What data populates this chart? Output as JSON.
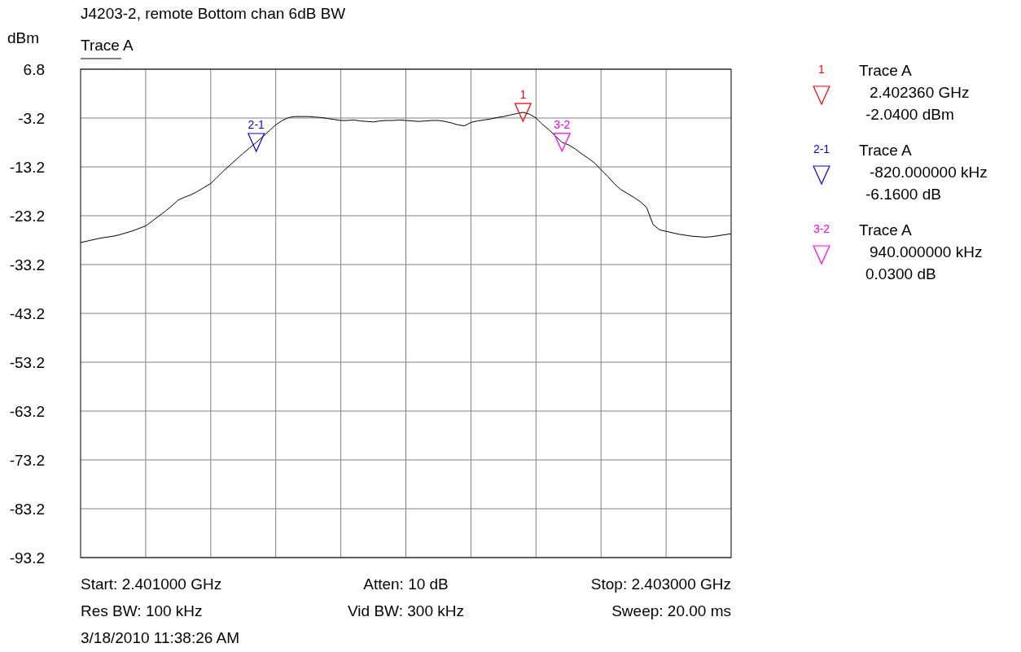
{
  "chart_data": {
    "type": "line",
    "title": "J4203-2, remote Bottom chan 6dB BW",
    "ylabel": "dBm",
    "categories": [
      null,
      null,
      null,
      null,
      null,
      null,
      null,
      null,
      null,
      null,
      null,
      null,
      null,
      null,
      null,
      null,
      null,
      null,
      null,
      null,
      null,
      null,
      null,
      null,
      null,
      null,
      null,
      null,
      null,
      null,
      null,
      null,
      null,
      null,
      null,
      null,
      null,
      null,
      null,
      null,
      null,
      null,
      null,
      null,
      null,
      null,
      null,
      null,
      null,
      null,
      null,
      null,
      null,
      null,
      null,
      null,
      null,
      null,
      null,
      null,
      null,
      null,
      null,
      null,
      null,
      null,
      null,
      null,
      null,
      null,
      null,
      null,
      null,
      null,
      null,
      null,
      null,
      null,
      null,
      null,
      null,
      null,
      null,
      null,
      null,
      null,
      null,
      null,
      null,
      null,
      null,
      null,
      null,
      null,
      null,
      null,
      null,
      null,
      null,
      null,
      null
    ],
    "ylim": [
      -93.2,
      6.8
    ],
    "yticks": [
      6.8,
      -3.2,
      -13.2,
      -23.2,
      -33.2,
      -43.2,
      -53.2,
      -63.2,
      -73.2,
      -83.2,
      -93.2
    ],
    "tick_labels": "y",
    "grid": true,
    "series": [
      {
        "name": "Trace A",
        "color": "#000000",
        "values": [
          -28.7,
          -28.4,
          -28.1,
          -27.8,
          -27.6,
          -27.4,
          -27.1,
          -26.7,
          -26.3,
          -25.8,
          -25.3,
          -24.3,
          -23.3,
          -22.3,
          -21.2,
          -20.0,
          -19.4,
          -18.9,
          -18.2,
          -17.4,
          -16.6,
          -15.3,
          -14.0,
          -12.8,
          -11.6,
          -10.4,
          -9.3,
          -8.2,
          -7.0,
          -5.8,
          -4.6,
          -3.7,
          -3.1,
          -2.9,
          -2.9,
          -2.9,
          -3.0,
          -3.1,
          -3.3,
          -3.5,
          -3.7,
          -3.7,
          -3.6,
          -3.8,
          -3.9,
          -4.0,
          -3.8,
          -3.7,
          -3.7,
          -3.6,
          -3.7,
          -3.8,
          -3.9,
          -3.8,
          -3.7,
          -3.7,
          -3.9,
          -4.2,
          -4.6,
          -4.8,
          -4.1,
          -3.8,
          -3.6,
          -3.4,
          -3.1,
          -2.9,
          -2.6,
          -2.3,
          -2.04,
          -2.4,
          -3.2,
          -4.5,
          -5.6,
          -6.9,
          -8.17,
          -8.7,
          -9.5,
          -10.5,
          -11.4,
          -12.4,
          -13.8,
          -15.1,
          -16.6,
          -17.8,
          -18.6,
          -19.4,
          -20.3,
          -21.5,
          -25.0,
          -26.1,
          -26.4,
          -26.7,
          -27.0,
          -27.2,
          -27.4,
          -27.5,
          -27.6,
          -27.5,
          -27.3,
          -27.1,
          -26.9
        ]
      },
      {
        "name": "1",
        "type": "scatter",
        "color": "#ff0000",
        "marker": "triangle",
        "values": [
          null,
          null,
          null,
          null,
          null,
          null,
          null,
          null,
          null,
          null,
          null,
          null,
          null,
          null,
          null,
          null,
          null,
          null,
          null,
          null,
          null,
          null,
          null,
          null,
          null,
          null,
          null,
          null,
          null,
          null,
          null,
          null,
          null,
          null,
          null,
          null,
          null,
          null,
          null,
          null,
          null,
          null,
          null,
          null,
          null,
          null,
          null,
          null,
          null,
          null,
          null,
          null,
          null,
          null,
          null,
          null,
          null,
          null,
          null,
          null,
          null,
          null,
          null,
          null,
          null,
          null,
          null,
          null,
          -2.04,
          null,
          null,
          null,
          null,
          null,
          null,
          null,
          null,
          null,
          null,
          null,
          null,
          null,
          null,
          null,
          null,
          null,
          null,
          null,
          null,
          null,
          null,
          null,
          null,
          null,
          null,
          null,
          null,
          null,
          null,
          null,
          null
        ]
      },
      {
        "name": "2-1",
        "type": "scatter",
        "color": "#0000ff",
        "marker": "triangle",
        "values": [
          null,
          null,
          null,
          null,
          null,
          null,
          null,
          null,
          null,
          null,
          null,
          null,
          null,
          null,
          null,
          null,
          null,
          null,
          null,
          null,
          null,
          null,
          null,
          null,
          null,
          null,
          null,
          -8.2,
          null,
          null,
          null,
          null,
          null,
          null,
          null,
          null,
          null,
          null,
          null,
          null,
          null,
          null,
          null,
          null,
          null,
          null,
          null,
          null,
          null,
          null,
          null,
          null,
          null,
          null,
          null,
          null,
          null,
          null,
          null,
          null,
          null,
          null,
          null,
          null,
          null,
          null,
          null,
          null,
          null,
          null,
          null,
          null,
          null,
          null,
          null,
          null,
          null,
          null,
          null,
          null,
          null,
          null,
          null,
          null,
          null,
          null,
          null,
          null,
          null,
          null,
          null,
          null,
          null,
          null,
          null,
          null,
          null,
          null,
          null,
          null,
          null
        ]
      },
      {
        "name": "3-2",
        "type": "scatter",
        "color": "#ff00ff",
        "marker": "triangle",
        "values": [
          null,
          null,
          null,
          null,
          null,
          null,
          null,
          null,
          null,
          null,
          null,
          null,
          null,
          null,
          null,
          null,
          null,
          null,
          null,
          null,
          null,
          null,
          null,
          null,
          null,
          null,
          null,
          null,
          null,
          null,
          null,
          null,
          null,
          null,
          null,
          null,
          null,
          null,
          null,
          null,
          null,
          null,
          null,
          null,
          null,
          null,
          null,
          null,
          null,
          null,
          null,
          null,
          null,
          null,
          null,
          null,
          null,
          null,
          null,
          null,
          null,
          null,
          null,
          null,
          null,
          null,
          null,
          null,
          null,
          null,
          null,
          null,
          null,
          null,
          -8.17,
          null,
          null,
          null,
          null,
          null,
          null,
          null,
          null,
          null,
          null,
          null,
          null,
          null,
          null,
          null,
          null,
          null,
          null,
          null,
          null,
          null,
          null,
          null,
          null,
          null,
          null
        ]
      }
    ],
    "annotations": [
      "Start: 2.401000 GHz",
      "Atten: 10 dB",
      "Stop: 2.403000 GHz",
      "Res BW: 100 kHz",
      "Vid BW: 300 kHz",
      "Sweep: 20.00 ms",
      "3/18/2010 11:38:26 AM",
      "Trace A",
      "2.402360 GHz",
      "-2.0400 dBm",
      "Trace A",
      "-820.000000 kHz",
      "-6.1600 dB",
      "Trace A",
      "940.000000 kHz",
      "0.0300 dB"
    ]
  }
}
